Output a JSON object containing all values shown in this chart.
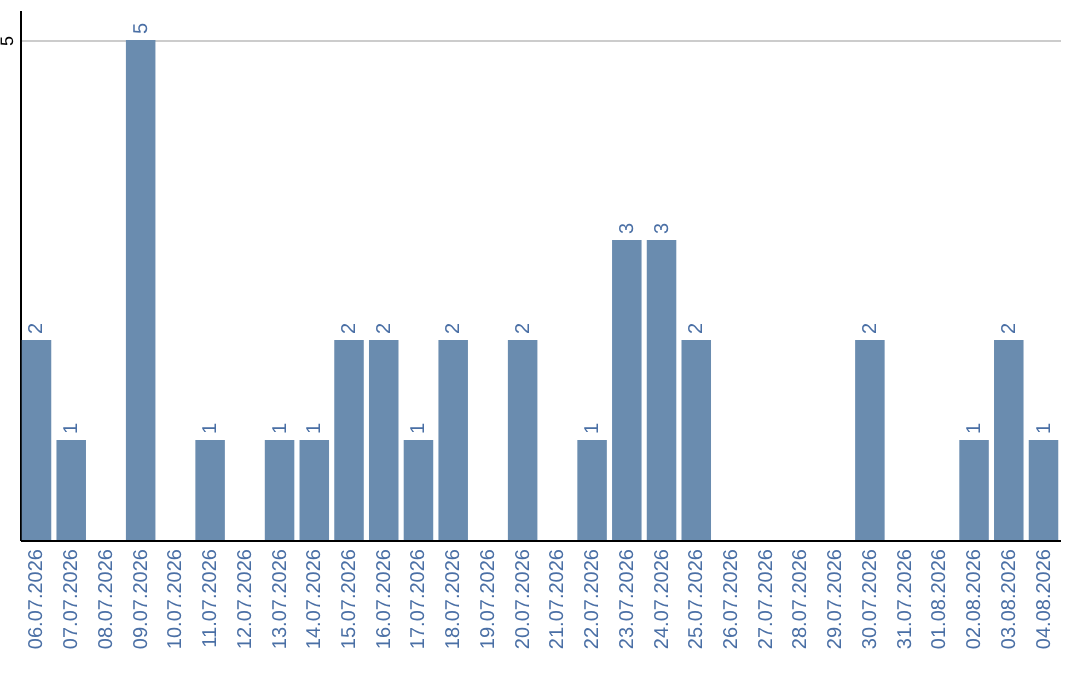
{
  "chart_data": {
    "type": "bar",
    "categories": [
      "06.07.2026",
      "07.07.2026",
      "08.07.2026",
      "09.07.2026",
      "10.07.2026",
      "11.07.2026",
      "12.07.2026",
      "13.07.2026",
      "14.07.2026",
      "15.07.2026",
      "16.07.2026",
      "17.07.2026",
      "18.07.2026",
      "19.07.2026",
      "20.07.2026",
      "21.07.2026",
      "22.07.2026",
      "23.07.2026",
      "24.07.2026",
      "25.07.2026",
      "26.07.2026",
      "27.07.2026",
      "28.07.2026",
      "29.07.2026",
      "30.07.2026",
      "31.07.2026",
      "01.08.2026",
      "02.08.2026",
      "03.08.2026",
      "04.08.2026"
    ],
    "values": [
      2,
      1,
      0,
      5,
      0,
      1,
      0,
      1,
      1,
      2,
      2,
      1,
      2,
      0,
      2,
      0,
      1,
      3,
      3,
      2,
      0,
      0,
      0,
      0,
      2,
      0,
      0,
      1,
      2,
      1
    ],
    "value_labels": [
      "2",
      "1",
      null,
      "5",
      null,
      "1",
      null,
      "1",
      "1",
      "2",
      "2",
      "1",
      "2",
      null,
      "2",
      null,
      "1",
      "3",
      "3",
      "2",
      null,
      null,
      null,
      null,
      "2",
      null,
      null,
      "1",
      "2",
      "1"
    ],
    "color": "#6a8caf",
    "ylim": [
      0,
      5.3
    ],
    "yticks": [
      5
    ],
    "grid": "y"
  }
}
